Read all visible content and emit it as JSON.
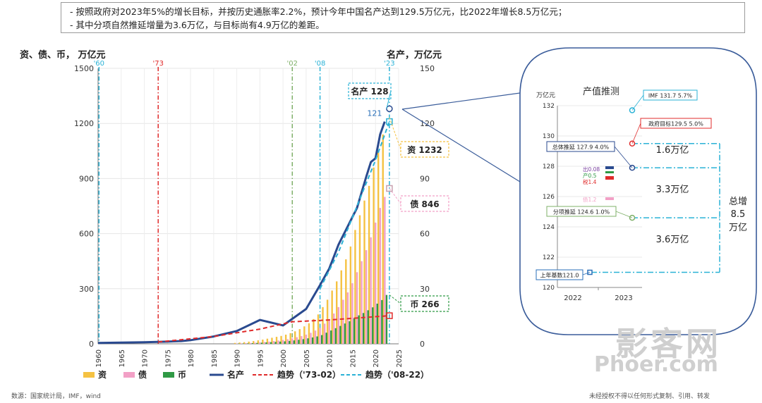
{
  "notes": [
    "-   按照政府对2023年5%的增长目标，并按历史通胀率2.2%，预计今年中国名产达到129.5万亿元，比2022年增长8.5万亿元；",
    "-   其中分项自然推延增量为3.6万亿，与目标尚有4.9万亿的差距。"
  ],
  "footer": {
    "source": "数源：国家统计局，IMF，wind",
    "copyright": "未经授权不得以任何形式复制、引用、转发"
  },
  "watermark": {
    "cn": "影客网",
    "en": "Phoer.com"
  },
  "colors": {
    "zi": "#f5c242",
    "zhai": "#f2a0c6",
    "bi": "#2f9a45",
    "mingchan": "#2a4a8f",
    "trend1": "#e02b2b",
    "trend2": "#2ab2d6"
  },
  "chart_data": [
    {
      "type": "bar",
      "left_axis_label": "资、债、币，  万亿元",
      "right_axis_label": "名产，万亿元",
      "ylim_left": [
        0,
        1500
      ],
      "yticks_left": [
        0,
        300,
        600,
        900,
        1200,
        1500
      ],
      "ylim_right": [
        0,
        150
      ],
      "yticks_right": [
        0,
        30,
        60,
        90,
        120,
        150
      ],
      "xlim": [
        1960,
        2025
      ],
      "xticks": [
        1960,
        1965,
        1970,
        1975,
        1980,
        1985,
        1990,
        1995,
        2000,
        2005,
        2010,
        2015,
        2020,
        2025
      ],
      "vlines": [
        {
          "label": "'60",
          "x": 1960.2,
          "color": "#2ab2d6"
        },
        {
          "label": "'73",
          "x": 1973,
          "color": "#e02b2b"
        },
        {
          "label": "'02",
          "x": 2002,
          "color": "#7fb069"
        },
        {
          "label": "'08",
          "x": 2008,
          "color": "#2ab2d6"
        },
        {
          "label": "'23",
          "x": 2023,
          "color": "#2ab2d6"
        }
      ],
      "bar_years": [
        1990,
        1991,
        1992,
        1993,
        1994,
        1995,
        1996,
        1997,
        1998,
        1999,
        2000,
        2001,
        2002,
        2003,
        2004,
        2005,
        2006,
        2007,
        2008,
        2009,
        2010,
        2011,
        2012,
        2013,
        2014,
        2015,
        2016,
        2017,
        2018,
        2019,
        2020,
        2021,
        2022
      ],
      "series_bars": [
        {
          "name": "资",
          "values": [
            5,
            7,
            9,
            12,
            15,
            19,
            23,
            28,
            33,
            38,
            43,
            50,
            58,
            68,
            80,
            95,
            112,
            135,
            160,
            200,
            240,
            290,
            340,
            400,
            460,
            530,
            620,
            700,
            780,
            860,
            960,
            1050,
            1140
          ]
        },
        {
          "name": "债",
          "values": [
            2,
            3,
            4,
            5,
            6,
            8,
            10,
            12,
            15,
            18,
            21,
            25,
            30,
            36,
            42,
            50,
            60,
            72,
            86,
            110,
            135,
            165,
            200,
            240,
            280,
            330,
            390,
            450,
            510,
            580,
            660,
            740,
            800
          ]
        },
        {
          "name": "币",
          "values": [
            1.5,
            2,
            2.5,
            3.5,
            4.7,
            6,
            7.6,
            9,
            10.4,
            12,
            13.5,
            15.8,
            18.5,
            22,
            25.4,
            29.9,
            34.6,
            40.3,
            47.5,
            60.6,
            72.6,
            85.2,
            97.4,
            110.7,
            122.8,
            139.2,
            155,
            167.7,
            182.7,
            198.6,
            218.7,
            238.3,
            266
          ]
        }
      ],
      "series_lines": [
        {
          "name": "名产",
          "points": [
            [
              1960,
              0.5
            ],
            [
              1965,
              0.7
            ],
            [
              1970,
              0.9
            ],
            [
              1975,
              1.2
            ],
            [
              1978,
              1.5
            ],
            [
              1980,
              2
            ],
            [
              1985,
              4
            ],
            [
              1990,
              7
            ],
            [
              1995,
              13
            ],
            [
              2000,
              10
            ],
            [
              2005,
              19
            ],
            [
              2008,
              32
            ],
            [
              2010,
              41
            ],
            [
              2012,
              54
            ],
            [
              2014,
              64
            ],
            [
              2016,
              74
            ],
            [
              2018,
              91
            ],
            [
              2019,
              99
            ],
            [
              2020,
              101
            ],
            [
              2021,
              114
            ],
            [
              2022,
              121
            ]
          ]
        },
        {
          "name": "趋势（'73-02）",
          "points": [
            [
              1973,
              1
            ],
            [
              1985,
              4
            ],
            [
              1995,
              8
            ],
            [
              2002,
              12
            ],
            [
              2010,
              13
            ],
            [
              2023,
              15.3
            ]
          ]
        },
        {
          "name": "趋势（'08-22）",
          "points": [
            [
              2008,
              30
            ],
            [
              2012,
              50
            ],
            [
              2016,
              75
            ],
            [
              2020,
              100
            ],
            [
              2023,
              121
            ]
          ]
        }
      ],
      "callouts": [
        {
          "text": "名产 128",
          "year": 2023,
          "value": 128
        },
        {
          "text": "121",
          "year": 2022,
          "value": 121
        },
        {
          "text": "资 1232",
          "year": 2023,
          "value": 1232
        },
        {
          "text": "债 846",
          "year": 2023,
          "value": 846
        },
        {
          "text": "币 266",
          "year": 2023,
          "value": 266
        }
      ],
      "legend": [
        "资",
        "债",
        "币",
        "名产",
        "趋势（'73-02）",
        "趋势（'08-22）"
      ]
    },
    {
      "type": "scatter",
      "title": "产值推测",
      "ylabel": "万亿元",
      "ylim": [
        120,
        132
      ],
      "yticks": [
        120,
        122,
        124,
        126,
        128,
        130,
        132
      ],
      "categories": [
        "2022",
        "2023"
      ],
      "points": [
        {
          "label": "IMF 131.7  5.7%",
          "value": 131.7,
          "color": "#2ab2d6"
        },
        {
          "label": "政府目标129.5  5.0%",
          "value": 129.5,
          "color": "#e02b2b"
        },
        {
          "label": "总体推延 127.9  4.0%",
          "value": 127.9,
          "color": "#2a4a8f"
        },
        {
          "label": "分项推延 124.6  1.0%",
          "value": 124.6,
          "color": "#7fb069"
        },
        {
          "label": "上年基数121.0",
          "value": 121.0,
          "color": "#2a6fb8"
        }
      ],
      "small_labels": [
        {
          "text": "出0.08",
          "value": 127.9,
          "color": "#7a3fa0"
        },
        {
          "text": "产0.5",
          "value": 127.5,
          "color": "#2f9a45"
        },
        {
          "text": "税1.4",
          "value": 127.1,
          "color": "#e02b2b"
        },
        {
          "text": "债1.2",
          "value": 125.8,
          "color": "#f2a0c6"
        }
      ],
      "gap_labels": [
        "1.6万亿",
        "3.3万亿",
        "3.6万亿"
      ],
      "total_label": [
        "总增",
        "8.5",
        "万亿"
      ]
    }
  ]
}
